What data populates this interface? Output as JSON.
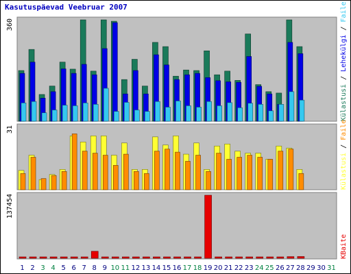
{
  "title": "Kasutuspäevad Veebruar 2007",
  "colors": {
    "panel_bg": "#c0c0c0",
    "visits": "#1a7a5a",
    "pages": "#0000e6",
    "files": "#35c8f0",
    "hits": "#ffff33",
    "files2": "#ff8c00",
    "bytes": "#e60000",
    "weekend": "#008040",
    "weekday": "#000080"
  },
  "chart_data": [
    {
      "type": "bar",
      "panel": "top",
      "categories": [
        "1",
        "2",
        "3",
        "4",
        "5",
        "6",
        "7",
        "8",
        "9",
        "10",
        "11",
        "12",
        "13",
        "14",
        "15",
        "16",
        "17",
        "18",
        "19",
        "20",
        "21",
        "22",
        "23",
        "24",
        "25",
        "26",
        "27",
        "28",
        "29",
        "30",
        "31"
      ],
      "weekend_days": [
        "3",
        "4",
        "10",
        "11",
        "17",
        "18",
        "24",
        "25",
        "31"
      ],
      "y_tick_label": "360",
      "ylim": [
        0,
        360
      ],
      "series": [
        {
          "name": "Külastusi",
          "color_key": "visits",
          "values": [
            180,
            255,
            95,
            125,
            210,
            185,
            360,
            178,
            360,
            355,
            148,
            220,
            125,
            280,
            265,
            160,
            182,
            180,
            250,
            165,
            178,
            145,
            310,
            130,
            105,
            100,
            360,
            265,
            0,
            0,
            0
          ]
        },
        {
          "name": "Lehekülgi",
          "color_key": "pages",
          "values": [
            170,
            210,
            82,
            105,
            186,
            170,
            202,
            165,
            258,
            350,
            97,
            180,
            97,
            236,
            200,
            148,
            165,
            170,
            155,
            144,
            140,
            138,
            230,
            124,
            97,
            60,
            280,
            240,
            0,
            0,
            0
          ]
        },
        {
          "name": "Faile",
          "color_key": "files",
          "values": [
            65,
            70,
            30,
            40,
            57,
            55,
            65,
            60,
            117,
            35,
            67,
            40,
            35,
            70,
            50,
            72,
            55,
            50,
            70,
            55,
            66,
            48,
            64,
            60,
            37,
            60,
            105,
            75,
            0,
            0,
            0
          ]
        }
      ]
    },
    {
      "type": "bar",
      "panel": "middle",
      "categories": [
        "1",
        "2",
        "3",
        "4",
        "5",
        "6",
        "7",
        "8",
        "9",
        "10",
        "11",
        "12",
        "13",
        "14",
        "15",
        "16",
        "17",
        "18",
        "19",
        "20",
        "21",
        "22",
        "23",
        "24",
        "25",
        "26",
        "27",
        "28",
        "29",
        "30",
        "31"
      ],
      "y_tick_label": "31",
      "ylim": [
        0,
        31
      ],
      "series": [
        {
          "name": "Külastusi",
          "color_key": "hits",
          "values": [
            9.5,
            17,
            5,
            7.5,
            10,
            26.5,
            23.5,
            26.5,
            26.5,
            17,
            23,
            10,
            10,
            26,
            22,
            26.5,
            17.5,
            23,
            10,
            21.5,
            22.5,
            19,
            18,
            18,
            15,
            21.5,
            20.5,
            10,
            0,
            0,
            0
          ]
        },
        {
          "name": "Faile",
          "color_key": "files2",
          "values": [
            8,
            16,
            5.5,
            7,
            9,
            27.5,
            19,
            18,
            17,
            12,
            17.5,
            9,
            8,
            19,
            20,
            18.5,
            14,
            17,
            9,
            18,
            15,
            16,
            17,
            16,
            15,
            19,
            20,
            8,
            0,
            0,
            0
          ]
        }
      ]
    },
    {
      "type": "bar",
      "panel": "bottom",
      "categories": [
        "1",
        "2",
        "3",
        "4",
        "5",
        "6",
        "7",
        "8",
        "9",
        "10",
        "11",
        "12",
        "13",
        "14",
        "15",
        "16",
        "17",
        "18",
        "19",
        "20",
        "21",
        "22",
        "23",
        "24",
        "25",
        "26",
        "27",
        "28",
        "29",
        "30",
        "31"
      ],
      "y_tick_label": "137454",
      "ylim": [
        0,
        137454
      ],
      "series": [
        {
          "name": "KBaite",
          "color_key": "bytes",
          "values": [
            3200,
            3100,
            1800,
            2200,
            3100,
            3600,
            3300,
            16500,
            3200,
            2300,
            3500,
            2800,
            2200,
            4100,
            3800,
            2900,
            3600,
            3300,
            137454,
            3200,
            3100,
            3000,
            4000,
            3300,
            2600,
            3500,
            5000,
            5200,
            0,
            0,
            0
          ]
        }
      ]
    }
  ]
}
